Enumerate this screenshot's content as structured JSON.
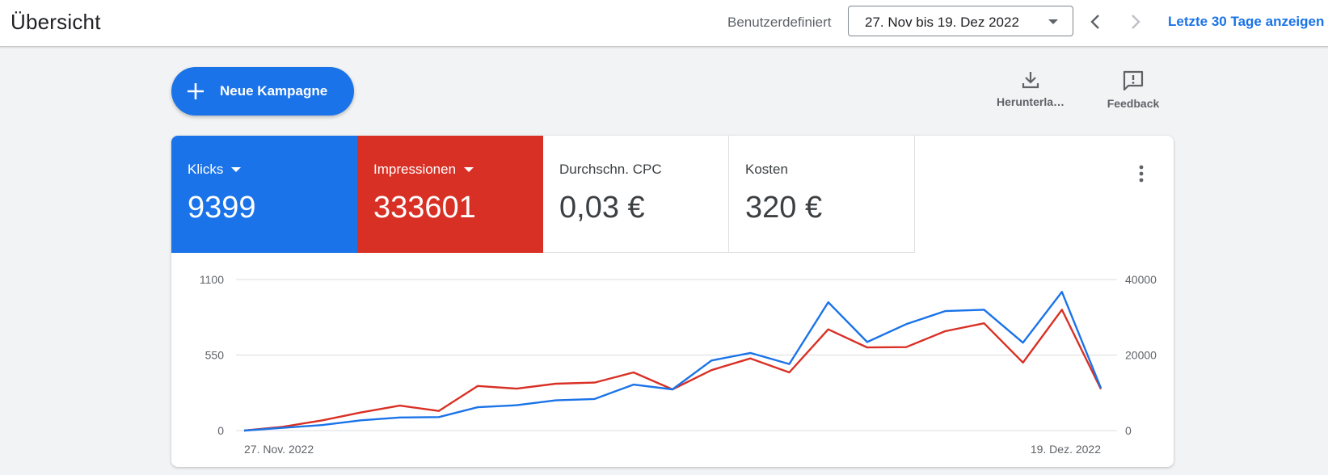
{
  "header": {
    "title": "Übersicht",
    "range_label": "Benutzerdefiniert",
    "date_range": "27. Nov bis 19. Dez 2022",
    "last_30": "Letzte 30 Tage anzeigen"
  },
  "actions": {
    "new_campaign": "Neue Kampagne",
    "download": "Herunterla…",
    "feedback": "Feedback"
  },
  "metrics": [
    {
      "name": "Klicks",
      "value": "9399",
      "color": "#1a73e8"
    },
    {
      "name": "Impressionen",
      "value": "333601",
      "color": "#d93025"
    },
    {
      "name": "Durchschn. CPC",
      "value": "0,03 €"
    },
    {
      "name": "Kosten",
      "value": "320 €"
    }
  ],
  "chart_data": {
    "type": "line",
    "x_start_label": "27. Nov. 2022",
    "x_end_label": "19. Dez. 2022",
    "left_axis": {
      "ticks": [
        "0",
        "550",
        "1100"
      ],
      "ylim": [
        0,
        1100
      ]
    },
    "right_axis": {
      "ticks": [
        "0",
        "20000",
        "40000"
      ],
      "ylim": [
        0,
        40000
      ]
    },
    "grid": true,
    "series": [
      {
        "name": "Klicks",
        "axis": "left",
        "color": "#1a73e8",
        "values": [
          0,
          20,
          40,
          75,
          95,
          98,
          170,
          185,
          220,
          230,
          335,
          300,
          510,
          565,
          485,
          935,
          645,
          775,
          870,
          880,
          640,
          1010,
          310
        ]
      },
      {
        "name": "Impressionen",
        "axis": "right",
        "color": "#d93025",
        "values": [
          0,
          1000,
          2700,
          4800,
          6600,
          5200,
          11800,
          11100,
          12400,
          12700,
          15400,
          10900,
          16000,
          19100,
          15400,
          26800,
          22000,
          22100,
          26300,
          28400,
          18000,
          32000,
          11000
        ]
      }
    ]
  }
}
